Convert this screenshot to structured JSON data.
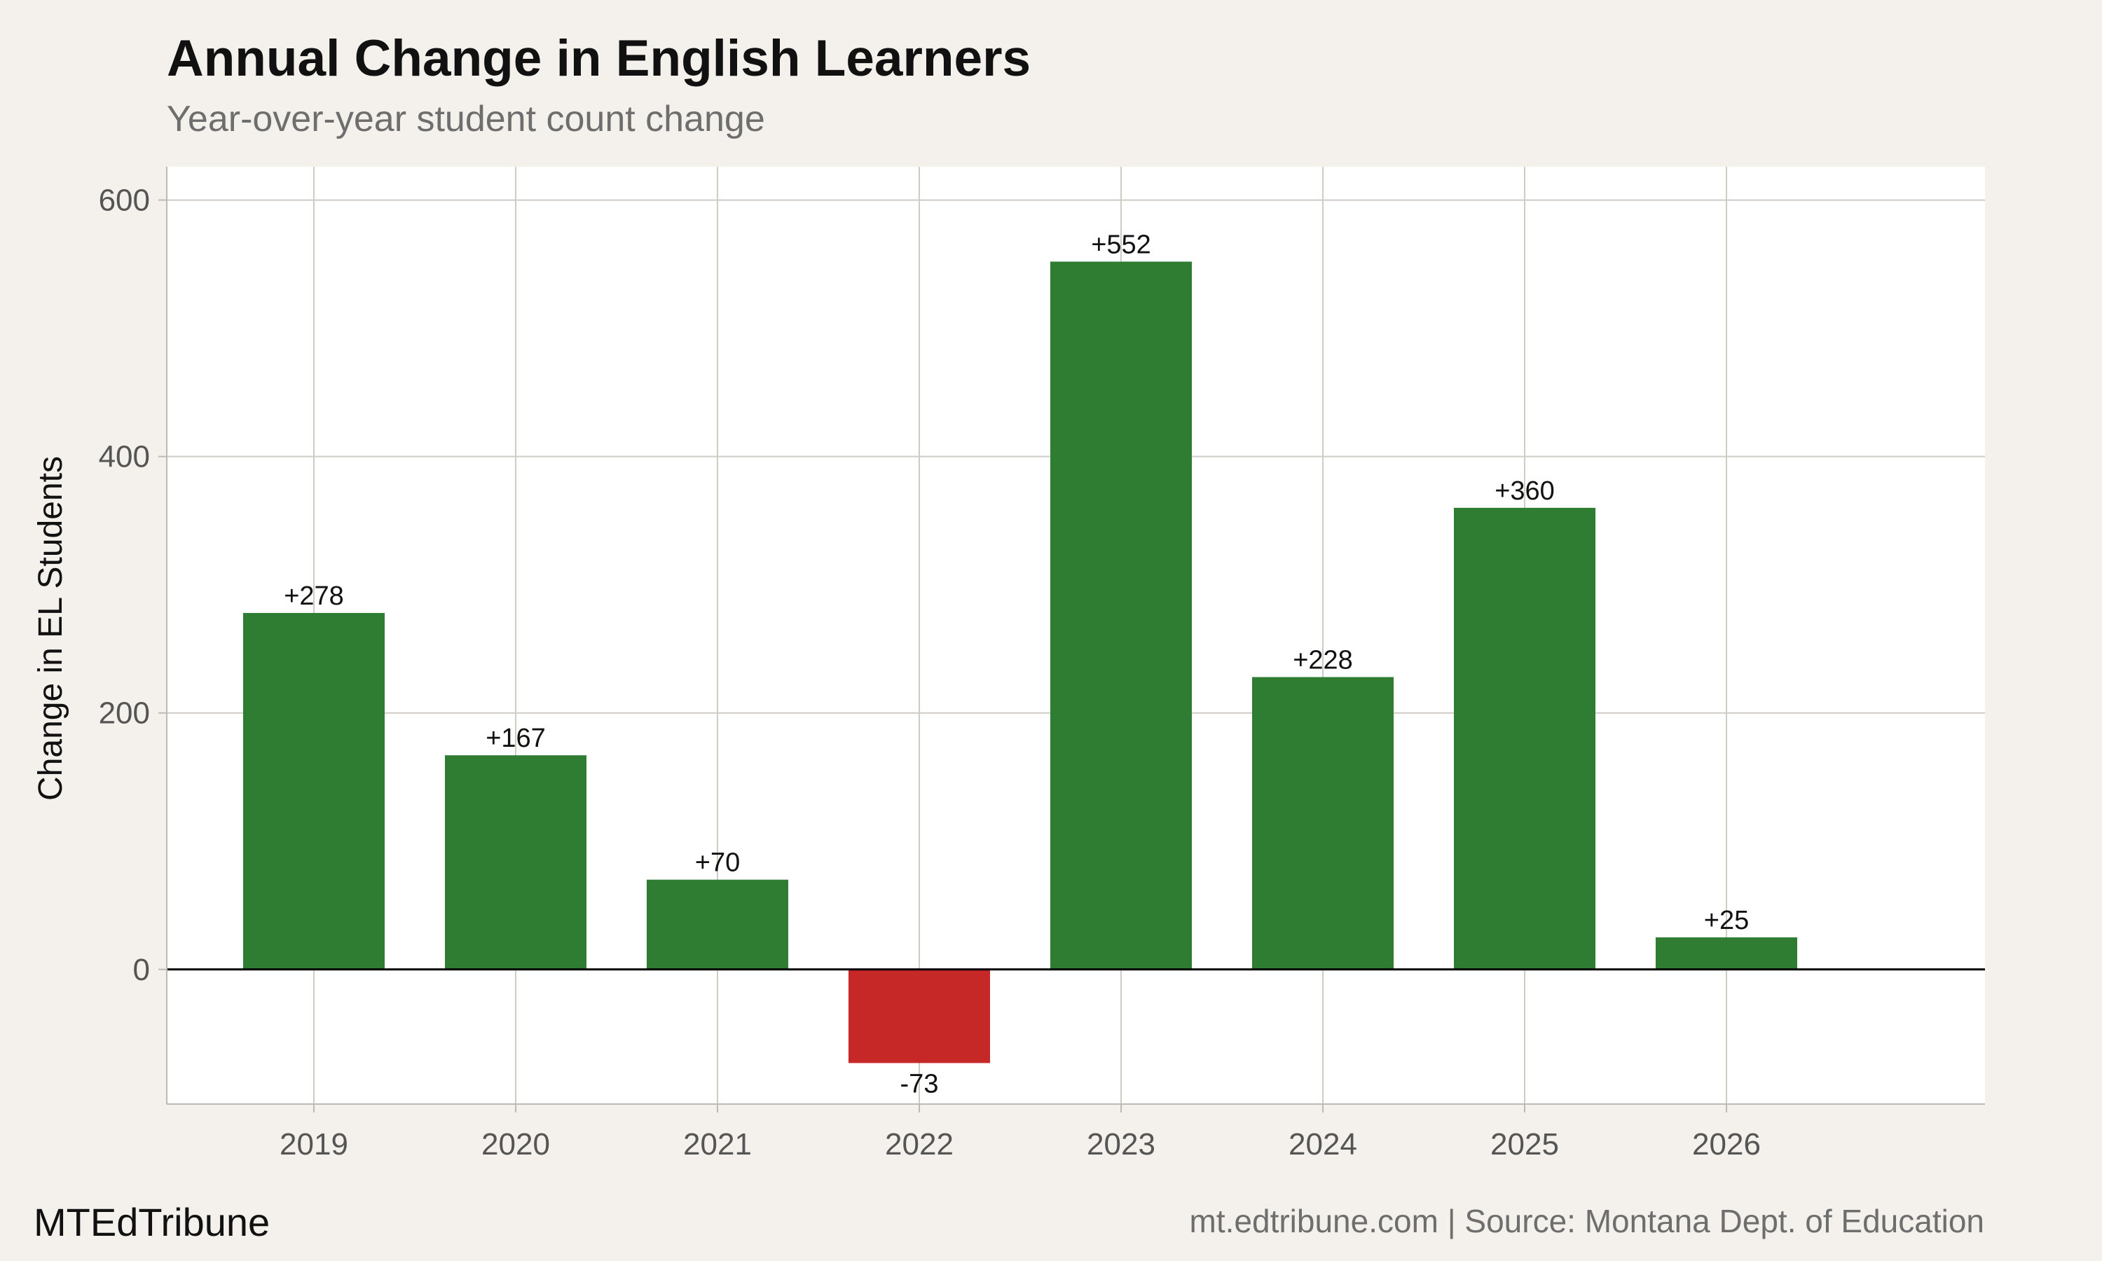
{
  "title": "Annual Change in English Learners",
  "subtitle": "Year-over-year student count change",
  "footer": {
    "brand": "MTEdTribune",
    "source": "mt.edtribune.com | Source: Montana Dept. of Education"
  },
  "colors": {
    "positive": "#2e7d32",
    "negative": "#c62828",
    "background": "#f4f1ec",
    "panel": "#ffffff",
    "grid": "#cfccc6",
    "zero_line": "#000000"
  },
  "chart_data": {
    "type": "bar",
    "categories": [
      "2019",
      "2020",
      "2021",
      "2022",
      "2023",
      "2024",
      "2025",
      "2026"
    ],
    "values": [
      278,
      167,
      70,
      -73,
      552,
      228,
      360,
      25
    ],
    "labels": [
      "+278",
      "+167",
      "+70",
      "-73",
      "+552",
      "+228",
      "+360",
      "+25"
    ],
    "xlabel": "",
    "ylabel": "Change in EL Students",
    "yticks": [
      0,
      200,
      400,
      600
    ],
    "ylim": [
      -105,
      626
    ],
    "grid": true,
    "legend": "none"
  }
}
